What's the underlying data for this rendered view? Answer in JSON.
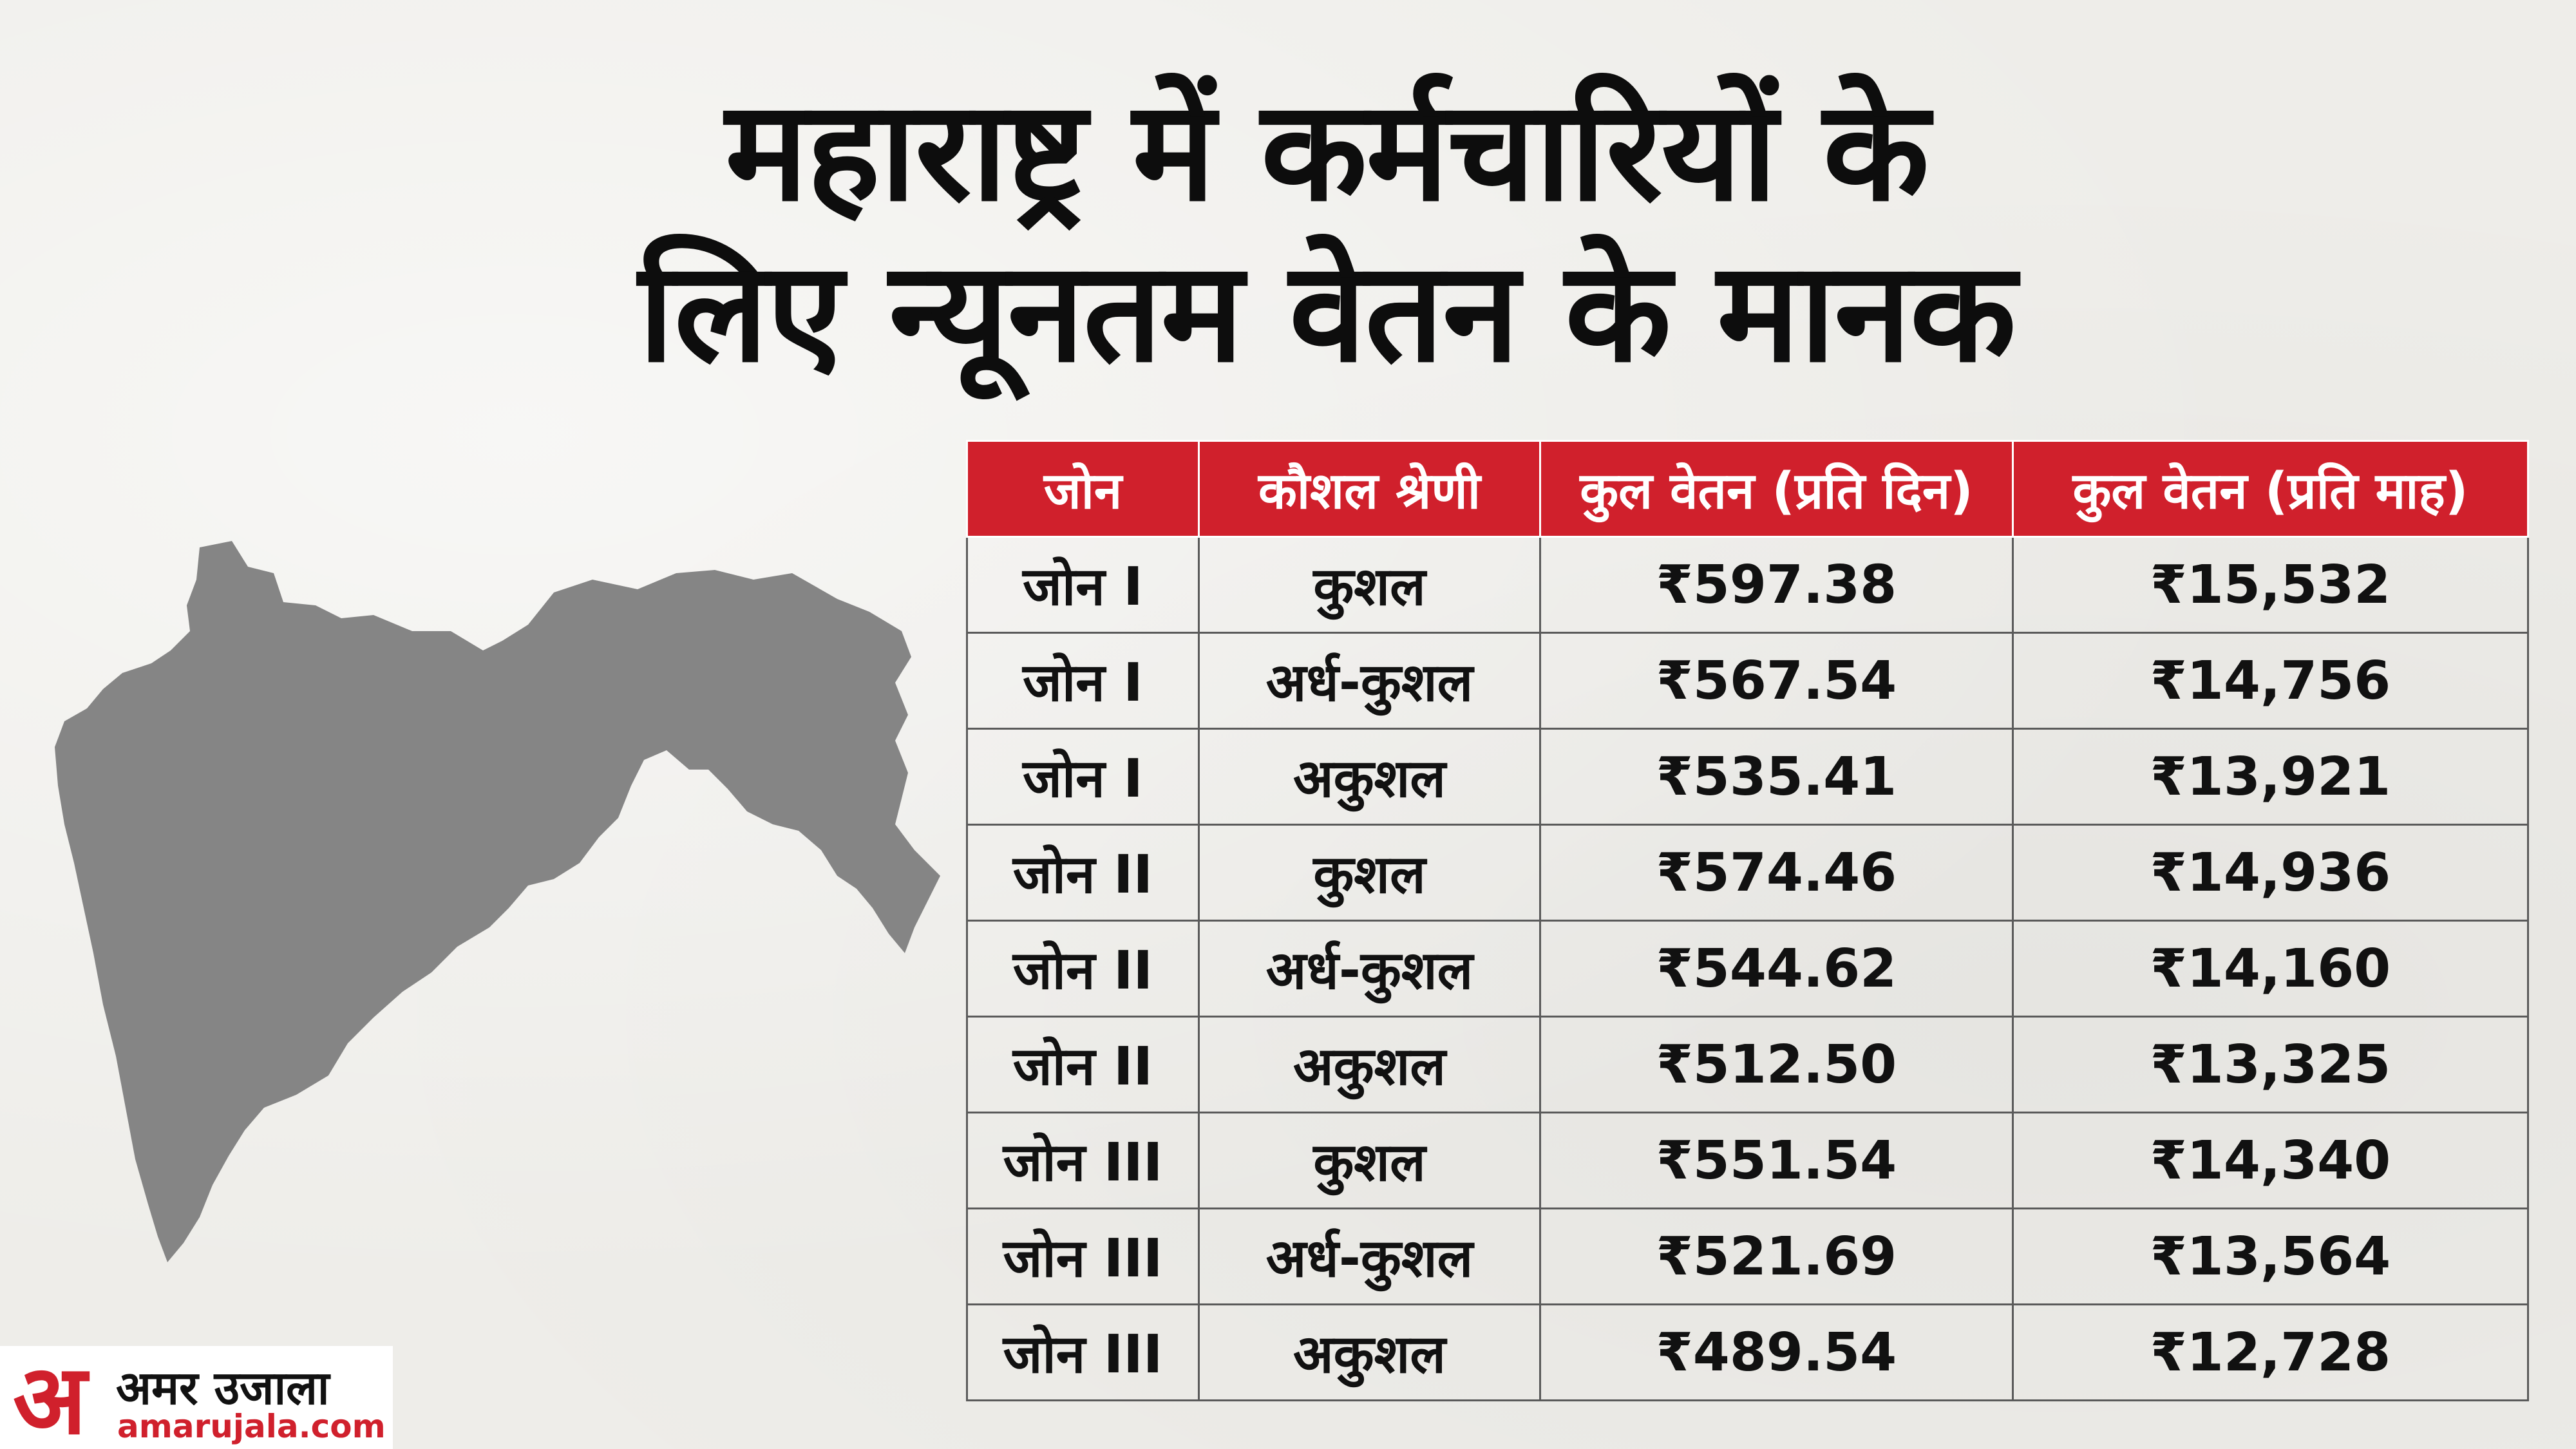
{
  "title": {
    "line1": "महाराष्ट्र में कर्मचारियों के",
    "line2": "लिए न्यूनतम वेतन के मानक"
  },
  "table": {
    "headers": [
      "जोन",
      "कौशल श्रेणी",
      "कुल वेतन (प्रति दिन)",
      "कुल वेतन (प्रति माह)"
    ],
    "rows": [
      [
        "जोन I",
        "कुशल",
        "₹597.38",
        "₹15,532"
      ],
      [
        "जोन I",
        "अर्ध-कुशल",
        "₹567.54",
        "₹14,756"
      ],
      [
        "जोन I",
        "अकुशल",
        "₹535.41",
        "₹13,921"
      ],
      [
        "जोन II",
        "कुशल",
        "₹574.46",
        "₹14,936"
      ],
      [
        "जोन II",
        "अर्ध-कुशल",
        "₹544.62",
        "₹14,160"
      ],
      [
        "जोन II",
        "अकुशल",
        "₹512.50",
        "₹13,325"
      ],
      [
        "जोन III",
        "कुशल",
        "₹551.54",
        "₹14,340"
      ],
      [
        "जोन III",
        "अर्ध-कुशल",
        "₹521.69",
        "₹13,564"
      ],
      [
        "जोन III",
        "अकुशल",
        "₹489.54",
        "₹12,728"
      ]
    ]
  },
  "logo": {
    "mark": "अ",
    "name": "अमर उजाला",
    "url": "amarujala.com"
  },
  "colors": {
    "header_red": "#d0202c",
    "map_gray": "#858585",
    "background": "#eeede9"
  },
  "map_icon": "maharashtra-state-silhouette"
}
